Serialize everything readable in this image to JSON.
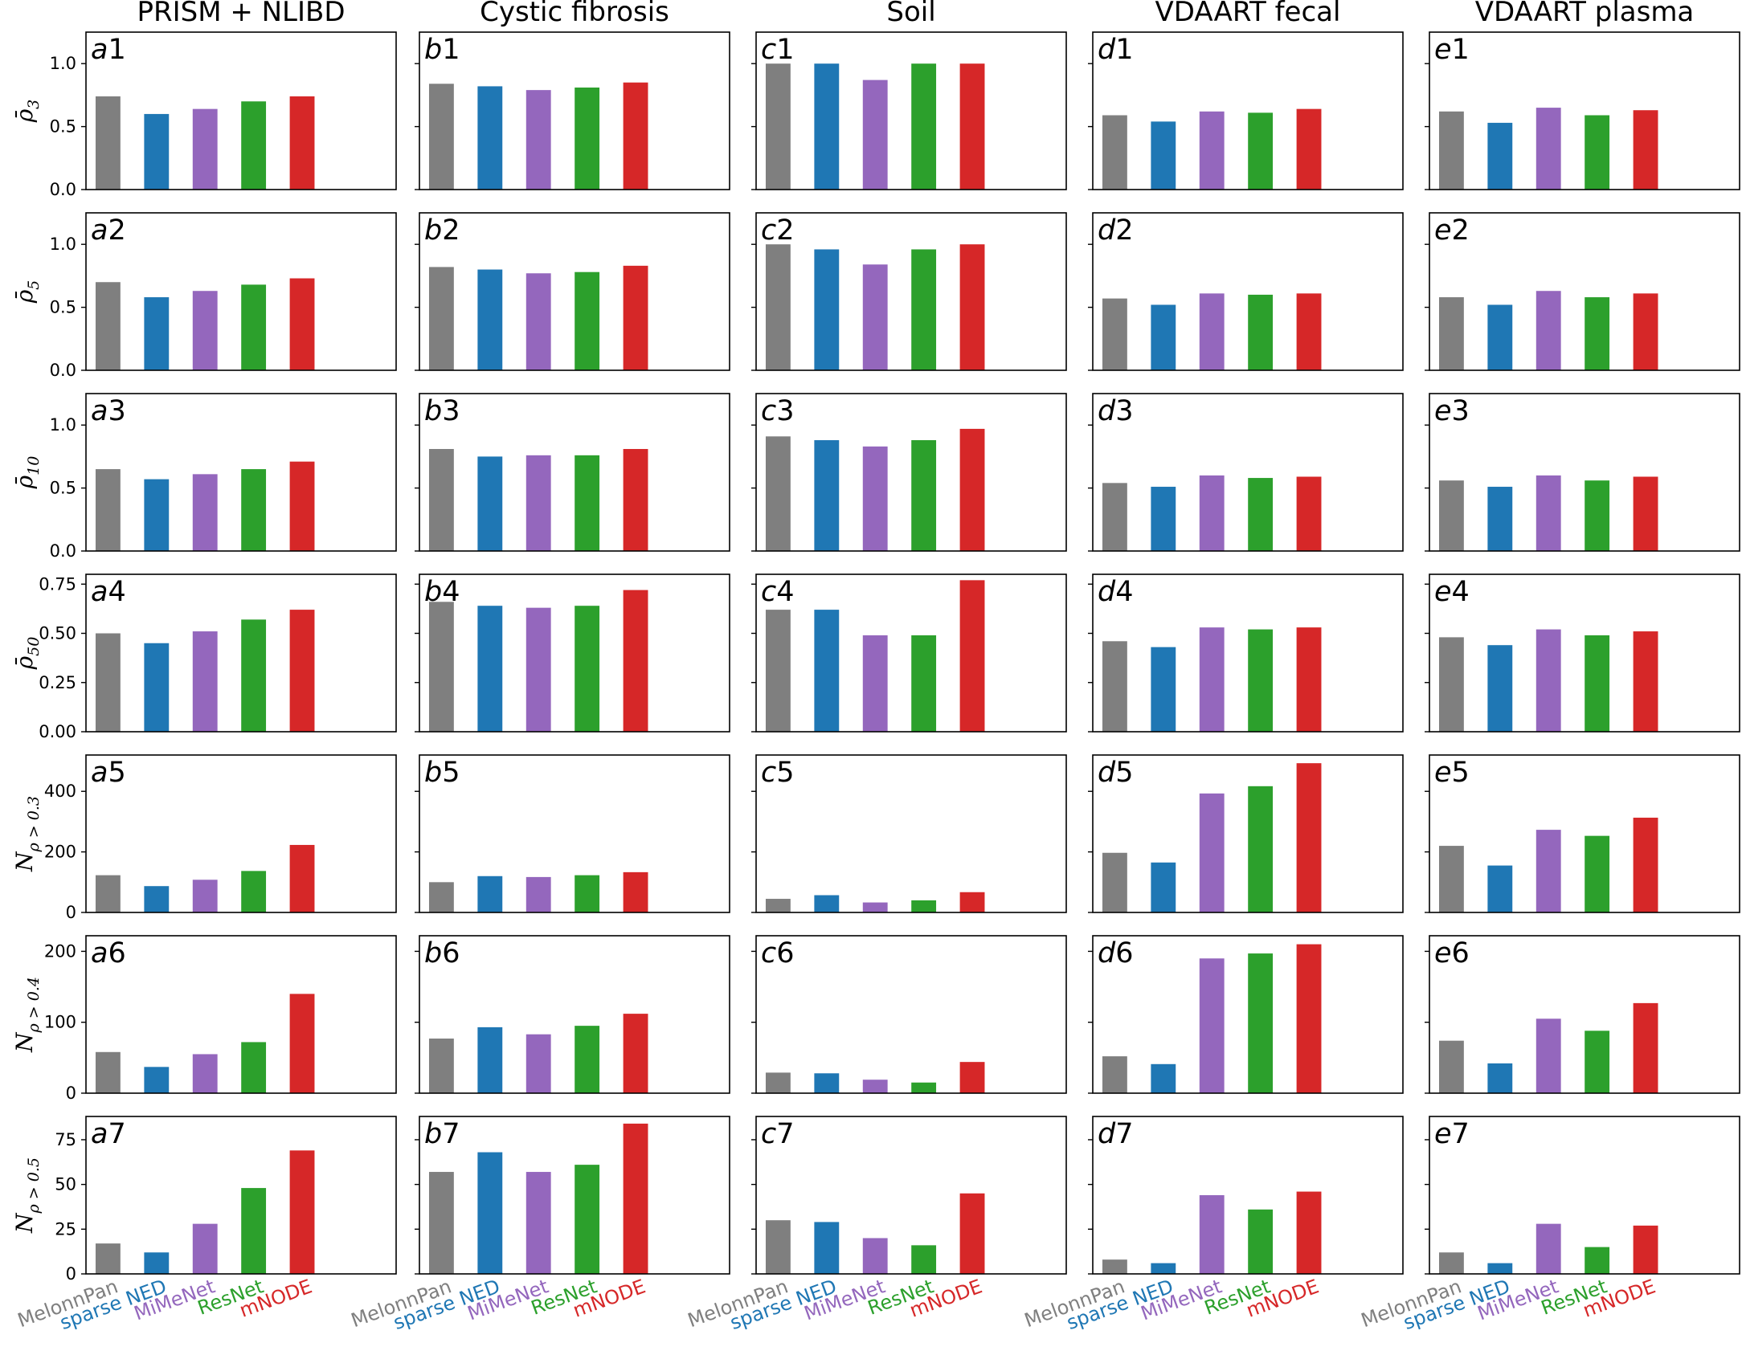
{
  "chart_data": {
    "type": "bar",
    "layout": "grid 7 rows x 5 columns, shared y-axis per row",
    "columns": [
      {
        "id": "a",
        "title": "PRISM + NLIBD"
      },
      {
        "id": "b",
        "title": "Cystic fibrosis"
      },
      {
        "id": "c",
        "title": "Soil"
      },
      {
        "id": "d",
        "title": "VDAART fecal"
      },
      {
        "id": "e",
        "title": "VDAART plasma"
      }
    ],
    "categories": [
      "MelonnPan",
      "sparse NED",
      "MiMeNet",
      "ResNet",
      "mNODE"
    ],
    "category_colors": [
      "#7f7f7f",
      "#1f77b4",
      "#9467bd",
      "#2ca02c",
      "#d62728"
    ],
    "rows": [
      {
        "ylabel": "ρ̄3",
        "ylabel_base": "ρ̄",
        "ylabel_sub": "3",
        "ylim": [
          0,
          1.25
        ],
        "yticks": [
          "0.0",
          "0.5",
          "1.0"
        ],
        "ytick_values": [
          0,
          0.5,
          1.0
        ],
        "values": [
          [
            0.74,
            0.6,
            0.64,
            0.7,
            0.74
          ],
          [
            0.84,
            0.82,
            0.79,
            0.81,
            0.85
          ],
          [
            1.0,
            1.0,
            0.87,
            1.0,
            1.0
          ],
          [
            0.59,
            0.54,
            0.62,
            0.61,
            0.64
          ],
          [
            0.62,
            0.53,
            0.65,
            0.59,
            0.63
          ]
        ]
      },
      {
        "ylabel": "ρ̄5",
        "ylabel_base": "ρ̄",
        "ylabel_sub": "5",
        "ylim": [
          0,
          1.25
        ],
        "yticks": [
          "0.0",
          "0.5",
          "1.0"
        ],
        "ytick_values": [
          0,
          0.5,
          1.0
        ],
        "values": [
          [
            0.7,
            0.58,
            0.63,
            0.68,
            0.73
          ],
          [
            0.82,
            0.8,
            0.77,
            0.78,
            0.83
          ],
          [
            1.0,
            0.96,
            0.84,
            0.96,
            1.0
          ],
          [
            0.57,
            0.52,
            0.61,
            0.6,
            0.61
          ],
          [
            0.58,
            0.52,
            0.63,
            0.58,
            0.61
          ]
        ]
      },
      {
        "ylabel": "ρ̄10",
        "ylabel_base": "ρ̄",
        "ylabel_sub": "10",
        "ylim": [
          0,
          1.25
        ],
        "yticks": [
          "0.0",
          "0.5",
          "1.0"
        ],
        "ytick_values": [
          0,
          0.5,
          1.0
        ],
        "values": [
          [
            0.65,
            0.57,
            0.61,
            0.65,
            0.71
          ],
          [
            0.81,
            0.75,
            0.76,
            0.76,
            0.81
          ],
          [
            0.91,
            0.88,
            0.83,
            0.88,
            0.97
          ],
          [
            0.54,
            0.51,
            0.6,
            0.58,
            0.59
          ],
          [
            0.56,
            0.51,
            0.6,
            0.56,
            0.59
          ]
        ]
      },
      {
        "ylabel": "ρ̄50",
        "ylabel_base": "ρ̄",
        "ylabel_sub": "50",
        "ylim": [
          0,
          0.8
        ],
        "yticks": [
          "0.00",
          "0.25",
          "0.50",
          "0.75"
        ],
        "ytick_values": [
          0,
          0.25,
          0.5,
          0.75
        ],
        "values": [
          [
            0.5,
            0.45,
            0.51,
            0.57,
            0.62
          ],
          [
            0.66,
            0.64,
            0.63,
            0.64,
            0.72
          ],
          [
            0.62,
            0.62,
            0.49,
            0.49,
            0.77
          ],
          [
            0.46,
            0.43,
            0.53,
            0.52,
            0.53
          ],
          [
            0.48,
            0.44,
            0.52,
            0.49,
            0.51
          ]
        ]
      },
      {
        "ylabel": "Nρ>0.3",
        "ylabel_base": "N",
        "ylabel_sub": "ρ > 0.3",
        "ylim": [
          0,
          520
        ],
        "yticks": [
          "0",
          "200",
          "400"
        ],
        "ytick_values": [
          0,
          200,
          400
        ],
        "values": [
          [
            123,
            87,
            108,
            137,
            223
          ],
          [
            100,
            120,
            117,
            123,
            133
          ],
          [
            45,
            57,
            33,
            40,
            67
          ],
          [
            197,
            165,
            393,
            417,
            493
          ],
          [
            220,
            155,
            273,
            253,
            313
          ]
        ]
      },
      {
        "ylabel": "Nρ>0.4",
        "ylabel_base": "N",
        "ylabel_sub": "ρ > 0.4",
        "ylim": [
          0,
          222
        ],
        "yticks": [
          "0",
          "100",
          "200"
        ],
        "ytick_values": [
          0,
          100,
          200
        ],
        "values": [
          [
            58,
            37,
            55,
            72,
            140
          ],
          [
            77,
            93,
            83,
            95,
            112
          ],
          [
            29,
            28,
            19,
            15,
            44
          ],
          [
            52,
            41,
            190,
            197,
            210
          ],
          [
            74,
            42,
            105,
            88,
            127
          ]
        ]
      },
      {
        "ylabel": "Nρ>0.5",
        "ylabel_base": "N",
        "ylabel_sub": "ρ > 0.5",
        "ylim": [
          0,
          88
        ],
        "yticks": [
          "0",
          "25",
          "50",
          "75"
        ],
        "ytick_values": [
          0,
          25,
          50,
          75
        ],
        "values": [
          [
            17,
            12,
            28,
            48,
            69
          ],
          [
            57,
            68,
            57,
            61,
            84
          ],
          [
            30,
            29,
            20,
            16,
            45
          ],
          [
            8,
            6,
            44,
            36,
            46
          ],
          [
            12,
            6,
            28,
            15,
            27
          ]
        ]
      }
    ],
    "panel_labels": [
      [
        "a1",
        "b1",
        "c1",
        "d1",
        "e1"
      ],
      [
        "a2",
        "b2",
        "c2",
        "d2",
        "e2"
      ],
      [
        "a3",
        "b3",
        "c3",
        "d3",
        "e3"
      ],
      [
        "a4",
        "b4",
        "c4",
        "d4",
        "e4"
      ],
      [
        "a5",
        "b5",
        "c5",
        "d5",
        "e5"
      ],
      [
        "a6",
        "b6",
        "c6",
        "d6",
        "e6"
      ],
      [
        "a7",
        "b7",
        "c7",
        "d7",
        "e7"
      ]
    ],
    "grid": false,
    "legend": "none; category labels on x-axis colored by series"
  }
}
